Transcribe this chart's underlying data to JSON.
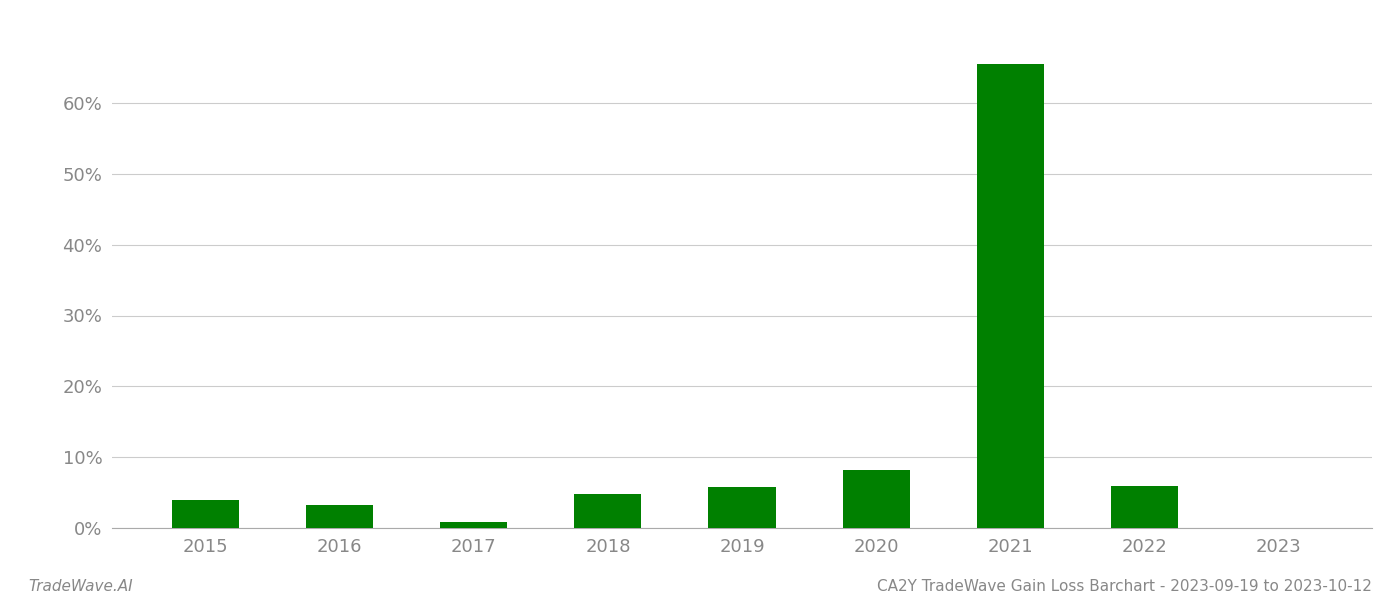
{
  "years": [
    2015,
    2016,
    2017,
    2018,
    2019,
    2020,
    2021,
    2022,
    2023
  ],
  "values": [
    0.04,
    0.033,
    0.008,
    0.048,
    0.058,
    0.082,
    0.655,
    0.059,
    0.0
  ],
  "bar_color": "#008000",
  "background_color": "#ffffff",
  "grid_color": "#cccccc",
  "axis_label_color": "#888888",
  "ylim": [
    0,
    0.72
  ],
  "yticks": [
    0.0,
    0.1,
    0.2,
    0.3,
    0.4,
    0.5,
    0.6
  ],
  "footer_left": "TradeWave.AI",
  "footer_right": "CA2Y TradeWave Gain Loss Barchart - 2023-09-19 to 2023-10-12",
  "footer_fontsize": 11,
  "tick_fontsize": 13,
  "bar_width": 0.5
}
